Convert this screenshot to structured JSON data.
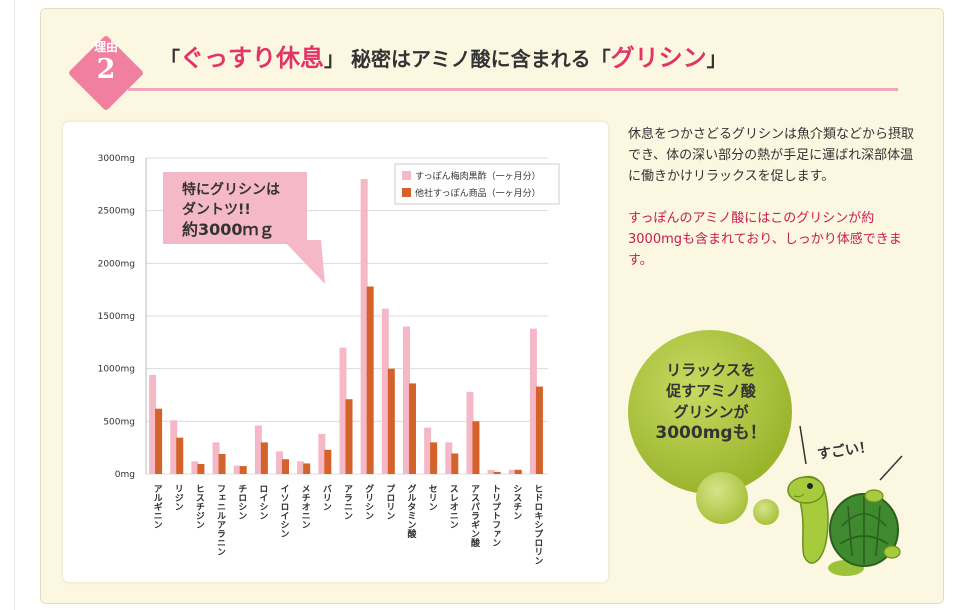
{
  "badge": {
    "label": "理由",
    "number": "2"
  },
  "heading": {
    "open1": "「",
    "word1": "ぐっすり休息",
    "close1": "」",
    "middle": "秘密はアミノ酸に含まれる",
    "open2": "「",
    "word2": "グリシン",
    "close2": "」"
  },
  "callout": {
    "line1": "特にグリシンは",
    "line2": "ダントツ!!",
    "line3": "約3000ｍｇ"
  },
  "body": {
    "p1": "休息をつかさどるグリシンは魚介類などから摂取でき、体の深い部分の熱が手足に運ばれ深部体温に働きかけリラックスを促します。",
    "p2": "すっぽんのアミノ酸にはこのグリシンが約3000mgも含まれており、しっかり体感できます。"
  },
  "bubble": {
    "line1": "リラックスを",
    "line2": "促すアミノ酸",
    "line3": "グリシンが",
    "line4": "3000mgも！"
  },
  "exclaim": "すごい！",
  "colors": {
    "pink": "#f5b8c7",
    "orange": "#d4622a",
    "accent": "#e23466",
    "badge": "#f07fa0",
    "green": "#a5bf34"
  },
  "chart_data": {
    "type": "bar",
    "categories": [
      "アルギニン",
      "リジン",
      "ヒスチジン",
      "フェニルアラニン",
      "チロシン",
      "ロイシン",
      "イソロイシン",
      "メチオニン",
      "バリン",
      "アラニン",
      "グリシン",
      "プロリン",
      "グルタミン酸",
      "セリン",
      "スレオニン",
      "アスパラギン酸",
      "トリプトファン",
      "シスチン",
      "ヒドロキシプロリン"
    ],
    "series": [
      {
        "name": "すっぽん梅肉黒酢（一ヶ月分）",
        "values": [
          940,
          510,
          120,
          300,
          80,
          460,
          215,
          120,
          380,
          1200,
          2800,
          1570,
          1400,
          440,
          300,
          780,
          40,
          40,
          1380
        ]
      },
      {
        "name": "他社すっぽん商品（一ヶ月分）",
        "values": [
          620,
          345,
          95,
          190,
          75,
          300,
          140,
          100,
          230,
          710,
          1780,
          1000,
          860,
          300,
          195,
          500,
          20,
          40,
          830
        ]
      }
    ],
    "yticks": [
      "0mg",
      "500mg",
      "1000mg",
      "1500mg",
      "2000mg",
      "2500mg",
      "3000mg"
    ],
    "ylim": [
      0,
      3000
    ],
    "grid": true,
    "legend": "top-right"
  }
}
